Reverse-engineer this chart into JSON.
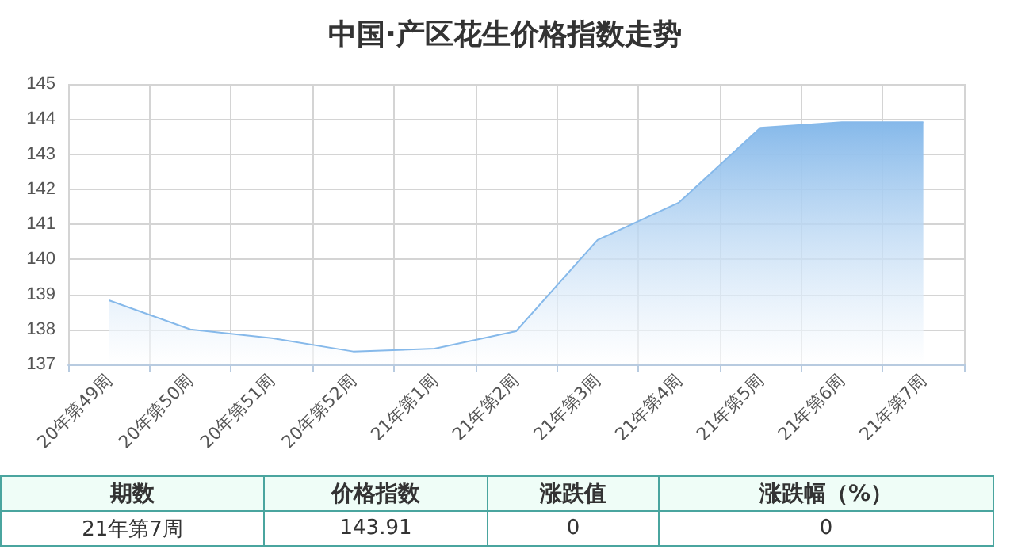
{
  "chart_data": {
    "type": "area",
    "title": "中国·产区花生价格指数走势",
    "categories": [
      "20年第49周",
      "20年第50周",
      "20年第51周",
      "20年第52周",
      "21年第1周",
      "21年第2周",
      "21年第3周",
      "21年第4周",
      "21年第5周",
      "21年第6周",
      "21年第7周"
    ],
    "series": [
      {
        "color": "#86b9ea",
        "values": [
          138.83,
          138.0,
          137.75,
          137.37,
          137.45,
          137.95,
          140.55,
          141.62,
          143.75,
          143.91,
          143.91
        ]
      }
    ],
    "ylim": [
      137,
      145
    ],
    "yticks": [
      137,
      138,
      139,
      140,
      141,
      142,
      143,
      144,
      145
    ],
    "grid": true,
    "annotations": [
      "期数",
      "价格指数",
      "涨跌值",
      "涨跌幅（%）",
      "21年第7周",
      "143.91",
      "0",
      "0"
    ]
  }
}
